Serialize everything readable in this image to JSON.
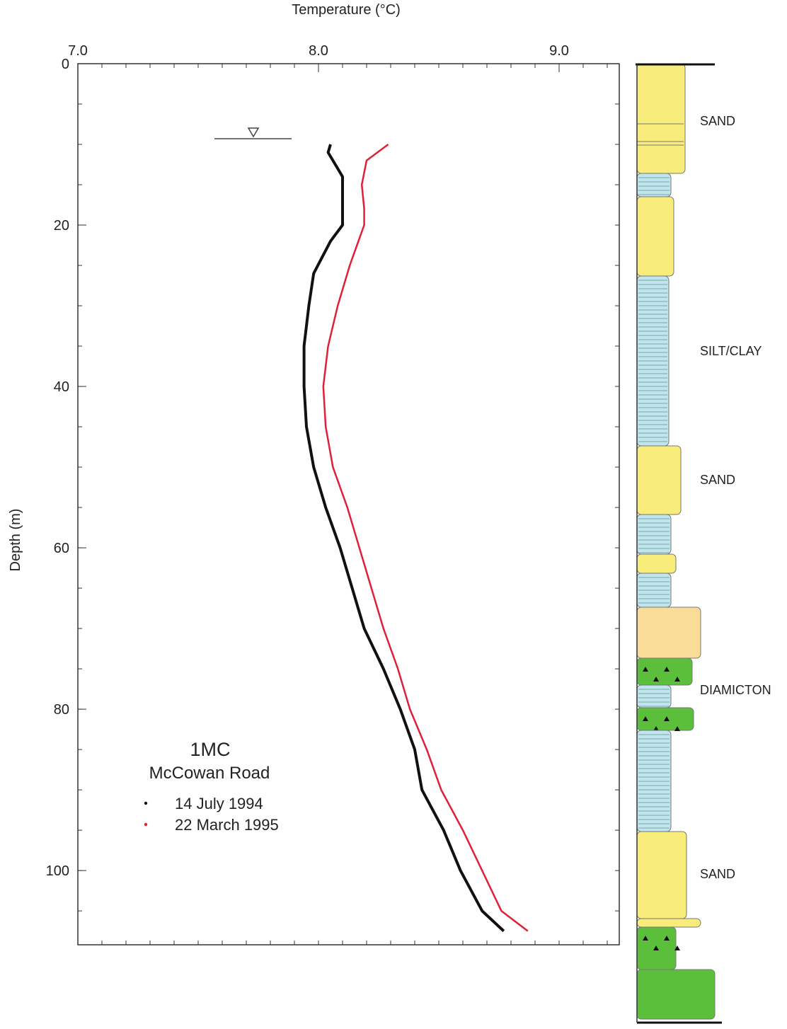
{
  "chart_data": {
    "type": "line",
    "x_label": "Temperature (°C)",
    "y_label": "Depth (m)",
    "xlim": [
      7.0,
      9.25
    ],
    "xticks": [
      {
        "value": 7,
        "label": "7.0"
      },
      {
        "value": 8,
        "label": "8.0"
      },
      {
        "value": 9,
        "label": "9.0"
      }
    ],
    "ylim": [
      0,
      109.2
    ],
    "yticks": [
      0,
      20,
      40,
      60,
      80,
      100
    ],
    "legend_title": "1MC",
    "legend_subtitle": "McCowan Road",
    "series": [
      {
        "name": "14 July 1994",
        "color": "#111111",
        "x": [
          8.05,
          8.04,
          8.1,
          8.1,
          8.1,
          8.05,
          7.98,
          7.96,
          7.94,
          7.94,
          7.95,
          7.98,
          8.03,
          8.09,
          8.14,
          8.19,
          8.27,
          8.34,
          8.4,
          8.43,
          8.52,
          8.59,
          8.68,
          8.77
        ],
        "y": [
          10,
          11,
          14,
          18,
          20,
          22,
          26,
          30,
          35,
          40,
          45,
          50,
          55,
          60,
          65,
          70,
          75,
          80,
          85,
          90,
          95,
          100,
          105,
          107.5
        ]
      },
      {
        "name": "22 March 1995",
        "color": "#e0203a",
        "x": [
          8.29,
          8.2,
          8.18,
          8.19,
          8.19,
          8.13,
          8.08,
          8.04,
          8.02,
          8.03,
          8.06,
          8.12,
          8.17,
          8.22,
          8.27,
          8.33,
          8.38,
          8.45,
          8.51,
          8.6,
          8.68,
          8.76,
          8.87
        ],
        "y": [
          10,
          12,
          15,
          18,
          20,
          25,
          30,
          35,
          40,
          45,
          50,
          55,
          60,
          65,
          70,
          75,
          80,
          85,
          90,
          95,
          100,
          105,
          107.5
        ]
      }
    ]
  },
  "log_labels": [
    "SAND",
    "SILT/CLAY",
    "SAND",
    "DIAMICTON",
    "SAND"
  ]
}
